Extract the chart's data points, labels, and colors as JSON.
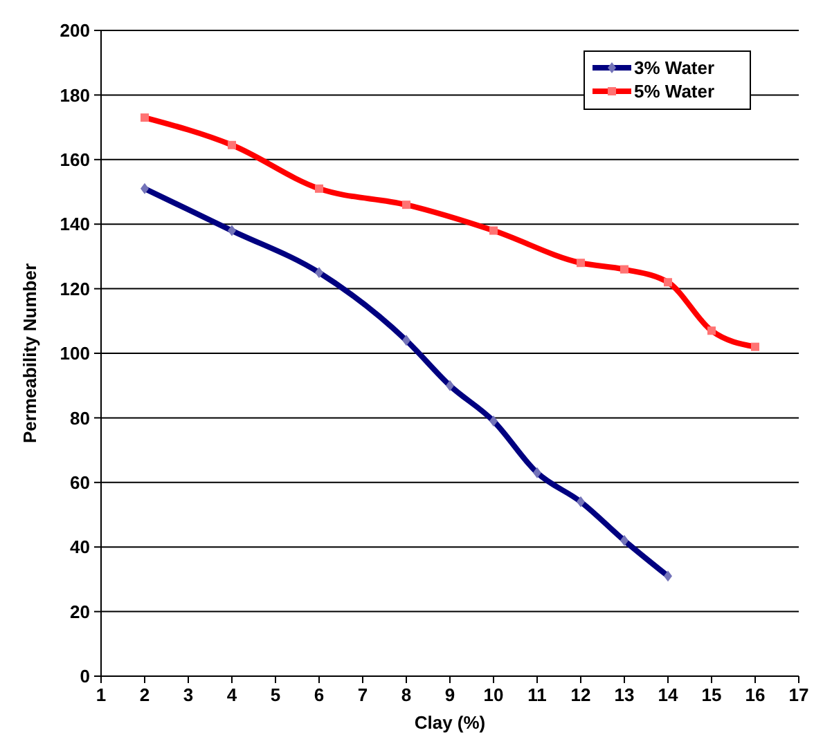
{
  "chart_data": {
    "type": "line",
    "xlabel": "Clay (%)",
    "ylabel": "Permeability Number",
    "xlim": [
      1,
      17
    ],
    "xticks": [
      1,
      2,
      3,
      4,
      5,
      6,
      7,
      8,
      9,
      10,
      11,
      12,
      13,
      14,
      15,
      16,
      17
    ],
    "ylim": [
      0,
      200
    ],
    "yticks": [
      0,
      20,
      40,
      60,
      80,
      100,
      120,
      140,
      160,
      180,
      200
    ],
    "grid": "y",
    "legend": "top right",
    "line_style": "solid",
    "series": [
      {
        "name": "3% Water",
        "color": "#000080",
        "marker": "diamond",
        "x": [
          2,
          4,
          6,
          8,
          9,
          10,
          11,
          12,
          13,
          14
        ],
        "values": [
          151,
          138,
          125,
          104,
          90,
          79,
          63,
          54,
          42,
          31
        ]
      },
      {
        "name": "5% Water",
        "color": "#ff0000",
        "marker": "square",
        "x": [
          2,
          4,
          6,
          8,
          10,
          12,
          13,
          14,
          15,
          16
        ],
        "values": [
          173,
          164.5,
          151,
          146,
          138,
          128,
          126,
          122,
          107,
          102
        ]
      }
    ]
  }
}
